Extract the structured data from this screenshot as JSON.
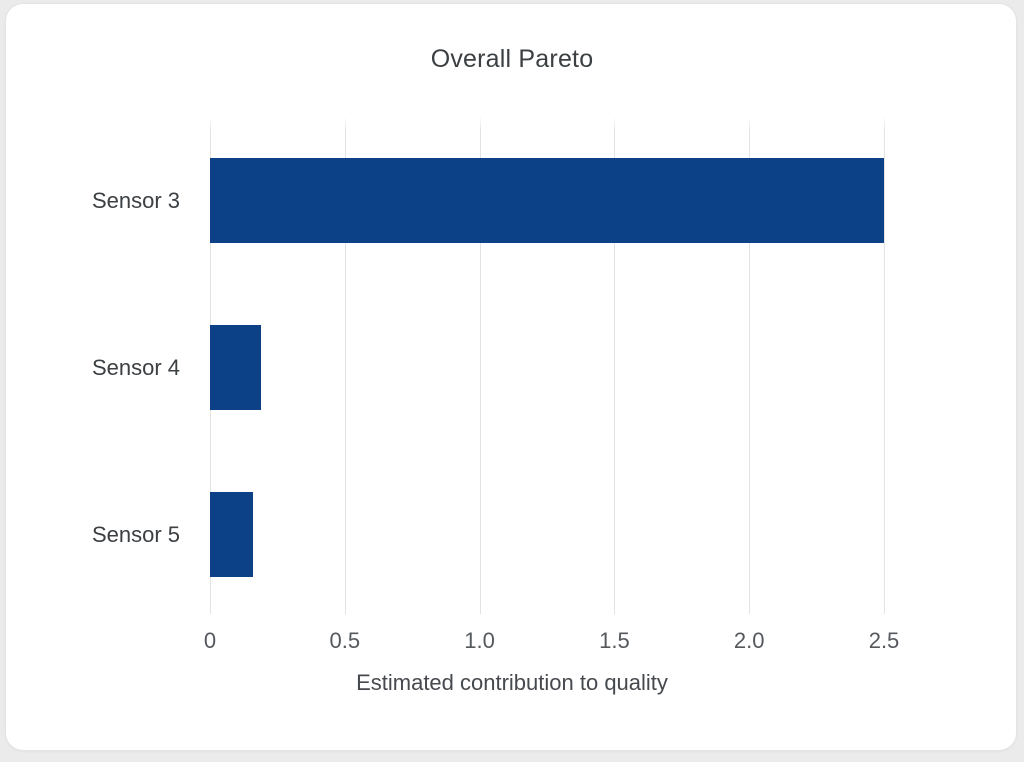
{
  "page": {
    "background_color": "#ebebeb",
    "card_background": "#ffffff",
    "card_border_color": "#e3e3e3"
  },
  "chart_data": {
    "type": "bar",
    "orientation": "horizontal",
    "title": "Overall Pareto",
    "xlabel": "Estimated contribution to quality",
    "ylabel": "",
    "categories": [
      "Sensor 3",
      "Sensor 4",
      "Sensor 5"
    ],
    "values": [
      2.5,
      0.19,
      0.16
    ],
    "xlim": [
      0,
      2.5
    ],
    "x_ticks": [
      {
        "value": 0.0,
        "label": "0"
      },
      {
        "value": 0.5,
        "label": "0.5"
      },
      {
        "value": 1.0,
        "label": "1.0"
      },
      {
        "value": 1.5,
        "label": "1.5"
      },
      {
        "value": 2.0,
        "label": "2.0"
      },
      {
        "value": 2.5,
        "label": "2.5"
      }
    ],
    "bar_color": "#0c4187",
    "gridline_color": "#e3e3e3",
    "grid": true,
    "legend": false
  }
}
